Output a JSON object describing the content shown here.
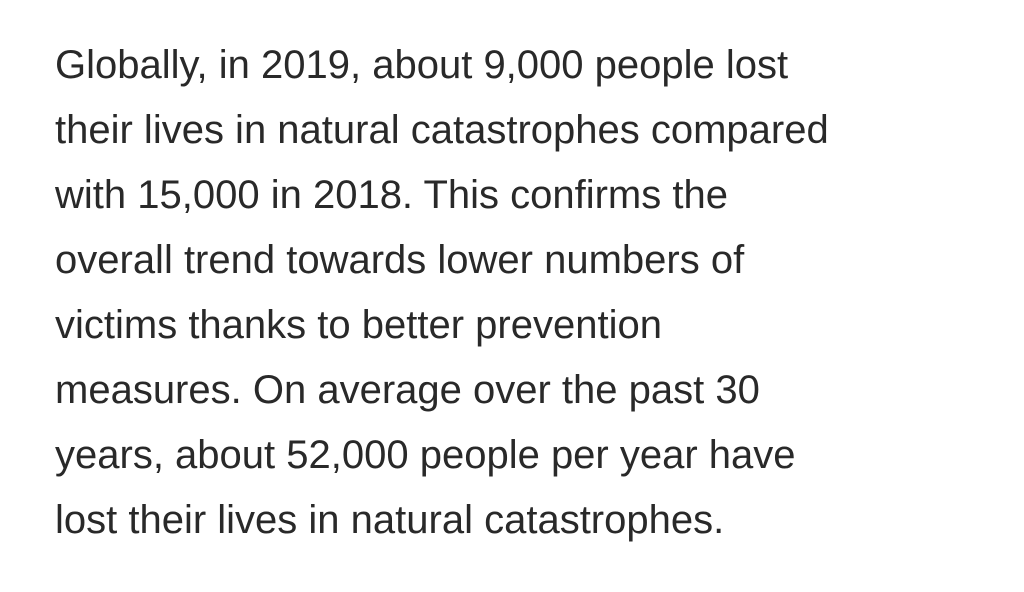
{
  "paragraph": {
    "lines": [
      "Globally, in 2019, about 9,000 people lost",
      "their lives in natural catastrophes compared",
      "with 15,000 in 2018. This confirms the",
      "overall trend towards lower numbers of",
      "victims thanks to better prevention",
      "measures. On average over the past 30",
      "years, about 52,000 people per year have",
      "lost their lives in natural catastrophes."
    ]
  }
}
